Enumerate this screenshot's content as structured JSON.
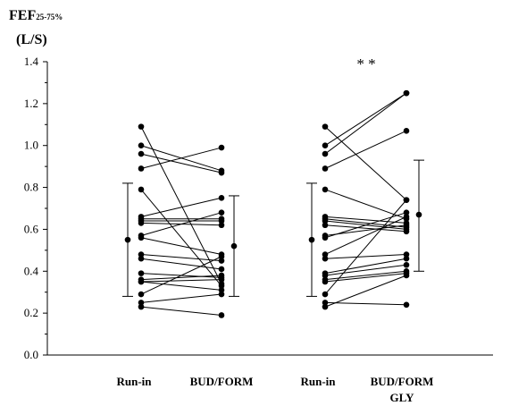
{
  "chart_data": {
    "type": "scatter",
    "ylabel_main": "FEF",
    "ylabel_sub": "25-75%",
    "ylabel_unit": "(L/S)",
    "ylim": [
      0,
      1.4
    ],
    "yticks": [
      "0.0",
      "0.2",
      "0.4",
      "0.6",
      "0.8",
      "1.0",
      "1.2",
      "1.4"
    ],
    "yticks_values": [
      0,
      0.2,
      0.4,
      0.6,
      0.8,
      1.0,
      1.2,
      1.4
    ],
    "grid": false,
    "categories": [
      "Run-in",
      "BUD/FORM",
      "Run-in",
      "BUD/FORM GLY"
    ],
    "category_lines": [
      [
        "Run-in"
      ],
      [
        "BUD/FORM"
      ],
      [
        "Run-in"
      ],
      [
        "BUD/FORM",
        "GLY"
      ]
    ],
    "significance": "* *",
    "color": "#000000",
    "panels": [
      {
        "name": "BUD/FORM",
        "pairs": [
          [
            1.09,
            0.34
          ],
          [
            1.0,
            0.88
          ],
          [
            0.96,
            0.87
          ],
          [
            0.89,
            0.99
          ],
          [
            0.79,
            0.33
          ],
          [
            0.66,
            0.75
          ],
          [
            0.65,
            0.65
          ],
          [
            0.64,
            0.64
          ],
          [
            0.63,
            0.62
          ],
          [
            0.57,
            0.68
          ],
          [
            0.56,
            0.48
          ],
          [
            0.48,
            0.45
          ],
          [
            0.46,
            0.41
          ],
          [
            0.39,
            0.37
          ],
          [
            0.36,
            0.38
          ],
          [
            0.35,
            0.36
          ],
          [
            0.35,
            0.31
          ],
          [
            0.29,
            0.47
          ],
          [
            0.25,
            0.29
          ],
          [
            0.23,
            0.19
          ]
        ],
        "mean_before": 0.55,
        "sd_before": [
          0.28,
          0.82
        ],
        "mean_after": 0.52,
        "sd_after": [
          0.28,
          0.76
        ]
      },
      {
        "name": "BUD/FORM GLY",
        "pairs": [
          [
            1.09,
            0.74
          ],
          [
            1.0,
            1.25
          ],
          [
            0.96,
            1.25
          ],
          [
            0.89,
            1.07
          ],
          [
            0.79,
            0.65
          ],
          [
            0.66,
            0.63
          ],
          [
            0.65,
            0.61
          ],
          [
            0.64,
            0.6
          ],
          [
            0.62,
            0.59
          ],
          [
            0.57,
            0.62
          ],
          [
            0.56,
            0.68
          ],
          [
            0.48,
            0.66
          ],
          [
            0.46,
            0.48
          ],
          [
            0.39,
            0.46
          ],
          [
            0.38,
            0.43
          ],
          [
            0.36,
            0.4
          ],
          [
            0.35,
            0.39
          ],
          [
            0.29,
            0.74
          ],
          [
            0.25,
            0.24
          ],
          [
            0.23,
            0.38
          ]
        ],
        "mean_before": 0.55,
        "sd_before": [
          0.28,
          0.82
        ],
        "mean_after": 0.67,
        "sd_after": [
          0.4,
          0.93
        ]
      }
    ]
  }
}
